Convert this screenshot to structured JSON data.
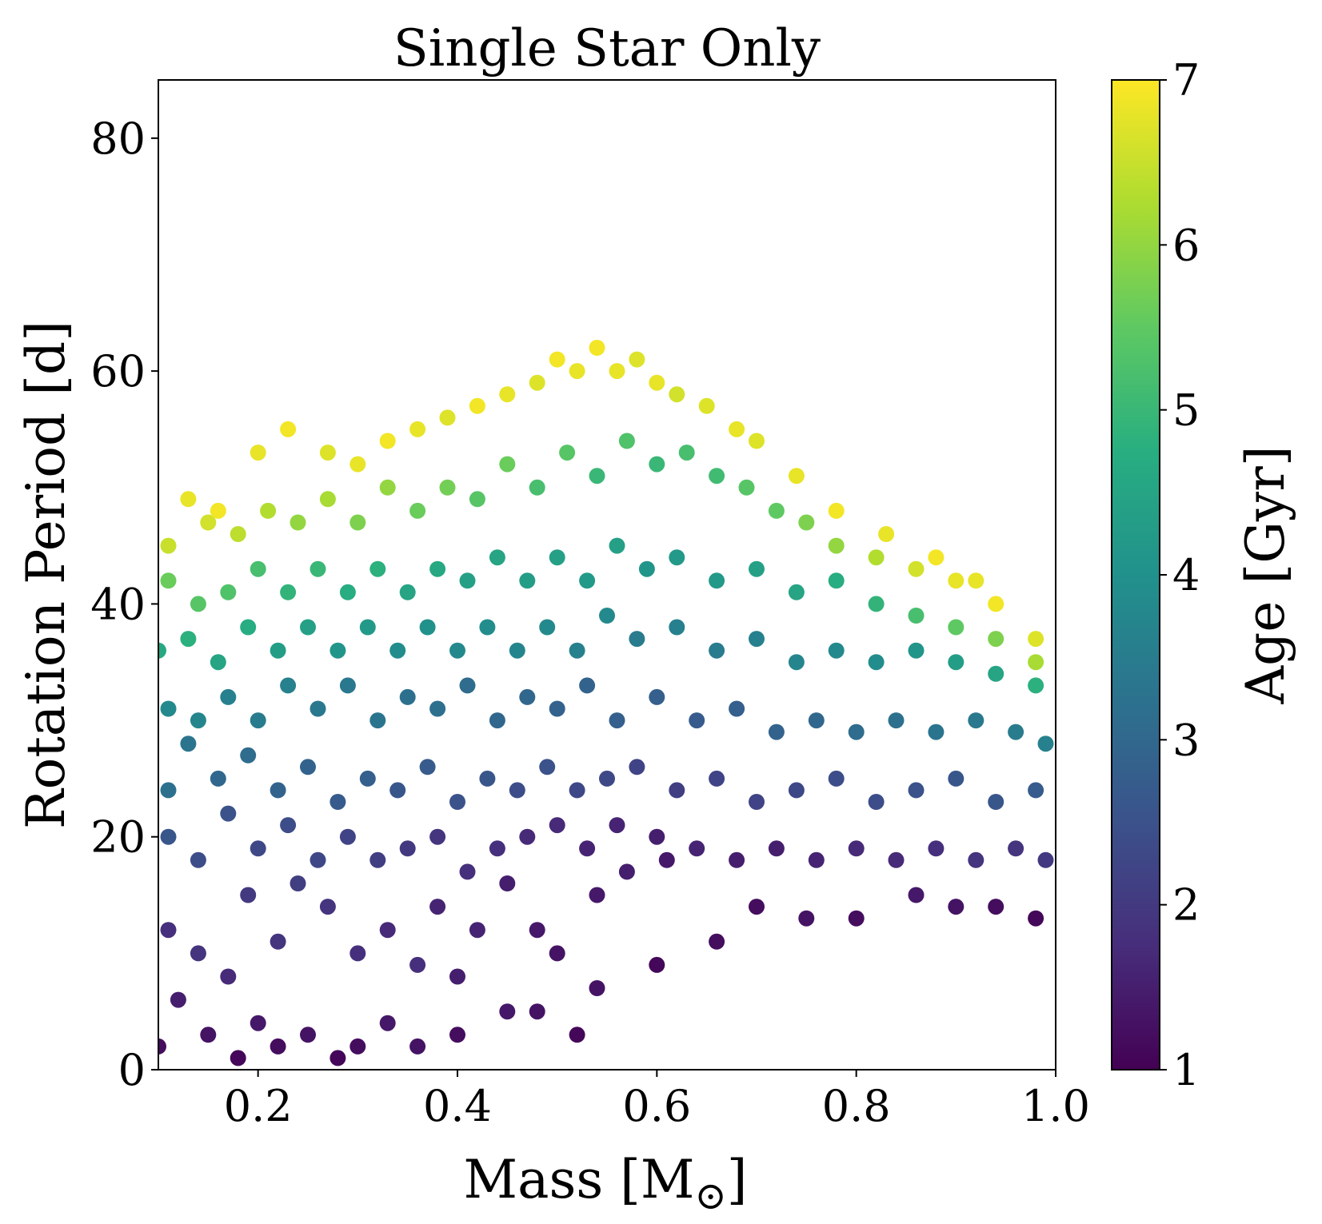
{
  "chart_data": {
    "type": "scatter",
    "title": "Single Star Only",
    "xlabel": "Mass [M",
    "xlabel_symbol": "⊙",
    "xlabel_close": "]",
    "ylabel": "Rotation Period [d]",
    "xlim": [
      0.1,
      1.0
    ],
    "ylim": [
      0,
      85
    ],
    "xticks": [
      0.2,
      0.4,
      0.6,
      0.8,
      1.0
    ],
    "xtick_labels": [
      "0.2",
      "0.4",
      "0.6",
      "0.8",
      "1.0"
    ],
    "yticks": [
      0,
      20,
      40,
      60,
      80
    ],
    "ytick_labels": [
      "0",
      "20",
      "40",
      "60",
      "80"
    ],
    "grid": false,
    "legend": "none",
    "colorbar": {
      "label": "Age [Gyr]",
      "colormap": "viridis",
      "range": [
        1,
        7
      ],
      "ticks": [
        1,
        2,
        3,
        4,
        5,
        6,
        7
      ],
      "tick_labels": [
        "1",
        "2",
        "3",
        "4",
        "5",
        "6",
        "7"
      ]
    },
    "series": [
      {
        "color_by": "age",
        "points": [
          [
            0.1,
            2,
            1.2
          ],
          [
            0.12,
            6,
            1.5
          ],
          [
            0.15,
            3,
            1.3
          ],
          [
            0.18,
            1,
            1.1
          ],
          [
            0.2,
            4,
            1.4
          ],
          [
            0.22,
            2,
            1.2
          ],
          [
            0.25,
            3,
            1.3
          ],
          [
            0.28,
            1,
            1.1
          ],
          [
            0.3,
            2,
            1.2
          ],
          [
            0.33,
            4,
            1.4
          ],
          [
            0.36,
            2,
            1.3
          ],
          [
            0.4,
            3,
            1.2
          ],
          [
            0.4,
            8,
            1.5
          ],
          [
            0.45,
            5,
            1.4
          ],
          [
            0.48,
            5,
            1.3
          ],
          [
            0.52,
            3,
            1.1
          ],
          [
            0.54,
            7,
            1.3
          ],
          [
            0.6,
            9,
            1.1
          ],
          [
            0.11,
            12,
            1.8
          ],
          [
            0.14,
            10,
            1.9
          ],
          [
            0.17,
            8,
            1.7
          ],
          [
            0.19,
            15,
            2.0
          ],
          [
            0.22,
            11,
            1.9
          ],
          [
            0.24,
            16,
            2.1
          ],
          [
            0.27,
            14,
            1.9
          ],
          [
            0.3,
            10,
            1.8
          ],
          [
            0.33,
            12,
            1.7
          ],
          [
            0.36,
            9,
            1.8
          ],
          [
            0.38,
            14,
            1.6
          ],
          [
            0.42,
            12,
            1.6
          ],
          [
            0.45,
            16,
            1.5
          ],
          [
            0.48,
            12,
            1.4
          ],
          [
            0.5,
            10,
            1.3
          ],
          [
            0.54,
            15,
            1.4
          ],
          [
            0.57,
            17,
            1.5
          ],
          [
            0.61,
            18,
            1.4
          ],
          [
            0.66,
            11,
            1.2
          ],
          [
            0.7,
            14,
            1.2
          ],
          [
            0.75,
            13,
            1.3
          ],
          [
            0.8,
            13,
            1.2
          ],
          [
            0.86,
            15,
            1.4
          ],
          [
            0.9,
            14,
            1.3
          ],
          [
            0.94,
            14,
            1.2
          ],
          [
            0.98,
            13,
            1.1
          ],
          [
            0.11,
            20,
            2.6
          ],
          [
            0.14,
            18,
            2.4
          ],
          [
            0.17,
            22,
            2.5
          ],
          [
            0.2,
            19,
            2.3
          ],
          [
            0.23,
            21,
            2.4
          ],
          [
            0.26,
            18,
            2.3
          ],
          [
            0.29,
            20,
            2.2
          ],
          [
            0.32,
            18,
            2.1
          ],
          [
            0.35,
            19,
            2.0
          ],
          [
            0.38,
            20,
            1.9
          ],
          [
            0.41,
            17,
            1.8
          ],
          [
            0.44,
            19,
            1.8
          ],
          [
            0.47,
            20,
            1.7
          ],
          [
            0.5,
            21,
            1.7
          ],
          [
            0.53,
            19,
            1.6
          ],
          [
            0.56,
            21,
            1.6
          ],
          [
            0.6,
            20,
            1.5
          ],
          [
            0.64,
            19,
            1.6
          ],
          [
            0.68,
            18,
            1.5
          ],
          [
            0.72,
            19,
            1.5
          ],
          [
            0.76,
            18,
            1.6
          ],
          [
            0.8,
            19,
            1.7
          ],
          [
            0.84,
            18,
            1.7
          ],
          [
            0.88,
            19,
            1.8
          ],
          [
            0.92,
            18,
            1.9
          ],
          [
            0.96,
            19,
            1.9
          ],
          [
            0.99,
            18,
            2.0
          ],
          [
            0.11,
            24,
            3.2
          ],
          [
            0.13,
            28,
            3.3
          ],
          [
            0.16,
            25,
            3.0
          ],
          [
            0.19,
            27,
            3.1
          ],
          [
            0.22,
            24,
            2.9
          ],
          [
            0.25,
            26,
            2.9
          ],
          [
            0.28,
            23,
            2.7
          ],
          [
            0.31,
            25,
            2.8
          ],
          [
            0.34,
            24,
            2.6
          ],
          [
            0.37,
            26,
            2.7
          ],
          [
            0.4,
            23,
            2.5
          ],
          [
            0.43,
            25,
            2.6
          ],
          [
            0.46,
            24,
            2.4
          ],
          [
            0.49,
            26,
            2.5
          ],
          [
            0.52,
            24,
            2.3
          ],
          [
            0.55,
            25,
            2.3
          ],
          [
            0.58,
            26,
            2.2
          ],
          [
            0.62,
            24,
            2.1
          ],
          [
            0.66,
            25,
            2.2
          ],
          [
            0.7,
            23,
            2.2
          ],
          [
            0.74,
            24,
            2.3
          ],
          [
            0.78,
            25,
            2.4
          ],
          [
            0.82,
            23,
            2.4
          ],
          [
            0.86,
            24,
            2.5
          ],
          [
            0.9,
            25,
            2.6
          ],
          [
            0.94,
            23,
            2.6
          ],
          [
            0.98,
            24,
            2.7
          ],
          [
            0.11,
            31,
            3.8
          ],
          [
            0.14,
            30,
            3.7
          ],
          [
            0.17,
            32,
            3.6
          ],
          [
            0.2,
            30,
            3.5
          ],
          [
            0.23,
            33,
            3.6
          ],
          [
            0.26,
            31,
            3.4
          ],
          [
            0.29,
            33,
            3.4
          ],
          [
            0.32,
            30,
            3.3
          ],
          [
            0.35,
            32,
            3.2
          ],
          [
            0.38,
            31,
            3.2
          ],
          [
            0.41,
            33,
            3.1
          ],
          [
            0.44,
            30,
            3.0
          ],
          [
            0.47,
            32,
            3.0
          ],
          [
            0.5,
            31,
            2.9
          ],
          [
            0.53,
            33,
            2.9
          ],
          [
            0.56,
            30,
            2.8
          ],
          [
            0.6,
            32,
            2.8
          ],
          [
            0.64,
            30,
            2.7
          ],
          [
            0.68,
            31,
            2.8
          ],
          [
            0.72,
            29,
            2.9
          ],
          [
            0.76,
            30,
            3.0
          ],
          [
            0.8,
            29,
            3.1
          ],
          [
            0.84,
            30,
            3.2
          ],
          [
            0.88,
            29,
            3.3
          ],
          [
            0.92,
            30,
            3.4
          ],
          [
            0.96,
            29,
            3.5
          ],
          [
            0.99,
            28,
            3.6
          ],
          [
            0.1,
            36,
            4.6
          ],
          [
            0.13,
            37,
            4.8
          ],
          [
            0.16,
            35,
            4.5
          ],
          [
            0.19,
            38,
            4.7
          ],
          [
            0.22,
            36,
            4.3
          ],
          [
            0.25,
            38,
            4.4
          ],
          [
            0.28,
            36,
            4.1
          ],
          [
            0.31,
            38,
            4.2
          ],
          [
            0.34,
            36,
            3.9
          ],
          [
            0.37,
            38,
            4.0
          ],
          [
            0.4,
            36,
            3.8
          ],
          [
            0.43,
            38,
            3.9
          ],
          [
            0.46,
            36,
            3.7
          ],
          [
            0.49,
            38,
            3.8
          ],
          [
            0.52,
            36,
            3.6
          ],
          [
            0.55,
            39,
            3.8
          ],
          [
            0.58,
            37,
            3.5
          ],
          [
            0.62,
            38,
            3.6
          ],
          [
            0.66,
            36,
            3.5
          ],
          [
            0.7,
            37,
            3.6
          ],
          [
            0.74,
            35,
            3.7
          ],
          [
            0.78,
            36,
            3.8
          ],
          [
            0.82,
            35,
            3.9
          ],
          [
            0.86,
            36,
            4.1
          ],
          [
            0.9,
            35,
            4.3
          ],
          [
            0.94,
            34,
            4.5
          ],
          [
            0.98,
            33,
            4.8
          ],
          [
            0.11,
            42,
            5.6
          ],
          [
            0.14,
            40,
            5.4
          ],
          [
            0.17,
            41,
            5.3
          ],
          [
            0.2,
            43,
            5.2
          ],
          [
            0.23,
            41,
            4.9
          ],
          [
            0.26,
            43,
            5.0
          ],
          [
            0.29,
            41,
            4.7
          ],
          [
            0.32,
            43,
            4.8
          ],
          [
            0.35,
            41,
            4.5
          ],
          [
            0.38,
            43,
            4.6
          ],
          [
            0.41,
            42,
            4.4
          ],
          [
            0.44,
            44,
            4.5
          ],
          [
            0.47,
            42,
            4.3
          ],
          [
            0.5,
            44,
            4.4
          ],
          [
            0.53,
            42,
            4.2
          ],
          [
            0.56,
            45,
            4.4
          ],
          [
            0.59,
            43,
            4.1
          ],
          [
            0.62,
            44,
            4.2
          ],
          [
            0.66,
            42,
            4.2
          ],
          [
            0.7,
            43,
            4.4
          ],
          [
            0.74,
            41,
            4.5
          ],
          [
            0.78,
            42,
            4.7
          ],
          [
            0.82,
            40,
            4.9
          ],
          [
            0.86,
            39,
            5.2
          ],
          [
            0.9,
            38,
            5.5
          ],
          [
            0.94,
            37,
            5.8
          ],
          [
            0.98,
            35,
            6.2
          ],
          [
            0.11,
            45,
            6.5
          ],
          [
            0.13,
            49,
            6.8
          ],
          [
            0.15,
            47,
            6.6
          ],
          [
            0.18,
            46,
            6.4
          ],
          [
            0.21,
            48,
            6.3
          ],
          [
            0.24,
            47,
            6.0
          ],
          [
            0.27,
            49,
            6.2
          ],
          [
            0.3,
            47,
            5.8
          ],
          [
            0.33,
            50,
            6.0
          ],
          [
            0.36,
            48,
            5.6
          ],
          [
            0.39,
            50,
            5.7
          ],
          [
            0.42,
            49,
            5.4
          ],
          [
            0.45,
            52,
            5.6
          ],
          [
            0.48,
            50,
            5.2
          ],
          [
            0.51,
            53,
            5.4
          ],
          [
            0.54,
            51,
            5.0
          ],
          [
            0.57,
            54,
            5.3
          ],
          [
            0.6,
            52,
            5.0
          ],
          [
            0.63,
            53,
            5.2
          ],
          [
            0.66,
            51,
            5.1
          ],
          [
            0.69,
            50,
            5.4
          ],
          [
            0.72,
            48,
            5.5
          ],
          [
            0.75,
            47,
            5.8
          ],
          [
            0.78,
            45,
            6.0
          ],
          [
            0.82,
            44,
            6.3
          ],
          [
            0.86,
            43,
            6.6
          ],
          [
            0.9,
            42,
            6.8
          ],
          [
            0.94,
            40,
            6.9
          ],
          [
            0.98,
            37,
            6.7
          ],
          [
            0.16,
            48,
            6.9
          ],
          [
            0.2,
            53,
            6.8
          ],
          [
            0.23,
            55,
            6.9
          ],
          [
            0.27,
            53,
            6.7
          ],
          [
            0.3,
            52,
            6.8
          ],
          [
            0.33,
            54,
            6.9
          ],
          [
            0.36,
            55,
            6.8
          ],
          [
            0.39,
            56,
            6.7
          ],
          [
            0.42,
            57,
            6.9
          ],
          [
            0.45,
            58,
            6.8
          ],
          [
            0.48,
            59,
            6.7
          ],
          [
            0.5,
            61,
            6.9
          ],
          [
            0.52,
            60,
            6.8
          ],
          [
            0.54,
            62,
            6.9
          ],
          [
            0.56,
            60,
            6.8
          ],
          [
            0.58,
            61,
            6.7
          ],
          [
            0.6,
            59,
            6.8
          ],
          [
            0.62,
            58,
            6.6
          ],
          [
            0.65,
            57,
            6.7
          ],
          [
            0.68,
            55,
            6.8
          ],
          [
            0.7,
            54,
            6.7
          ],
          [
            0.74,
            51,
            6.8
          ],
          [
            0.78,
            48,
            6.9
          ],
          [
            0.83,
            46,
            6.8
          ],
          [
            0.88,
            44,
            6.9
          ],
          [
            0.92,
            42,
            6.8
          ]
        ]
      }
    ]
  }
}
